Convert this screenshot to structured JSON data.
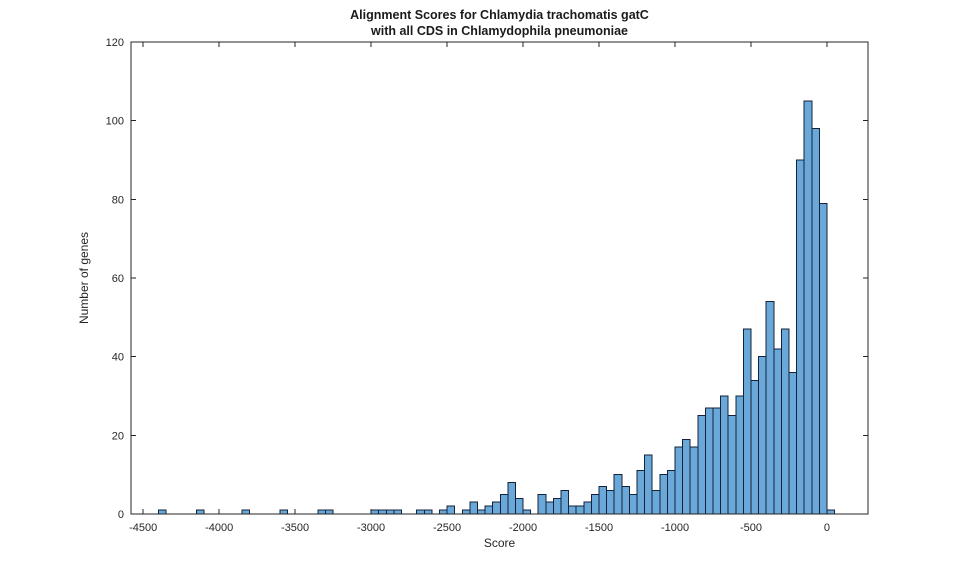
{
  "figure": {
    "title_line1": "Alignment Scores for Chlamydia trachomatis gatC",
    "title_line2": "with all CDS in Chlamydophila pneumoniae",
    "xlabel": "Score",
    "ylabel": "Number of genes"
  },
  "colors": {
    "background": "#ffffff",
    "bar_fill": "#69a8d8",
    "bar_edge": "#142338",
    "axis": "#262626",
    "tick_label": "#262626",
    "title_text": "#1a1a1a"
  },
  "chart_data": {
    "type": "bar",
    "subtype": "histogram",
    "title": "Alignment Scores for Chlamydia trachomatis gatC with all CDS in Chlamydophila pneumoniae",
    "xlabel": "Score",
    "ylabel": "Number of genes",
    "xlim": [
      -4580,
      270
    ],
    "ylim": [
      0,
      120
    ],
    "xticks": [
      -4500,
      -4000,
      -3500,
      -3000,
      -2500,
      -2000,
      -1500,
      -1000,
      -500,
      0
    ],
    "yticks": [
      0,
      20,
      40,
      60,
      80,
      100,
      120
    ],
    "grid": false,
    "legend": null,
    "bins": {
      "width": 50,
      "left_edges": [
        -4400,
        -4150,
        -3850,
        -3600,
        -3350,
        -3300,
        -3000,
        -2950,
        -2900,
        -2850,
        -2700,
        -2650,
        -2550,
        -2500,
        -2400,
        -2350,
        -2300,
        -2250,
        -2200,
        -2150,
        -2100,
        -2050,
        -2000,
        -1900,
        -1850,
        -1800,
        -1750,
        -1700,
        -1650,
        -1600,
        -1550,
        -1500,
        -1450,
        -1400,
        -1350,
        -1300,
        -1250,
        -1200,
        -1150,
        -1100,
        -1050,
        -1000,
        -950,
        -900,
        -850,
        -800,
        -750,
        -700,
        -650,
        -600,
        -550,
        -500,
        -450,
        -400,
        -350,
        -300,
        -250,
        -200,
        -150,
        -100,
        -50,
        0
      ],
      "counts": [
        1,
        1,
        1,
        1,
        1,
        1,
        1,
        1,
        1,
        1,
        1,
        1,
        1,
        2,
        1,
        3,
        1,
        2,
        3,
        5,
        8,
        4,
        1,
        5,
        3,
        4,
        6,
        2,
        2,
        3,
        5,
        7,
        6,
        10,
        7,
        5,
        11,
        15,
        6,
        10,
        11,
        17,
        19,
        17,
        25,
        27,
        27,
        30,
        25,
        30,
        47,
        34,
        40,
        54,
        42,
        47,
        36,
        90,
        105,
        98,
        79,
        1
      ]
    }
  }
}
